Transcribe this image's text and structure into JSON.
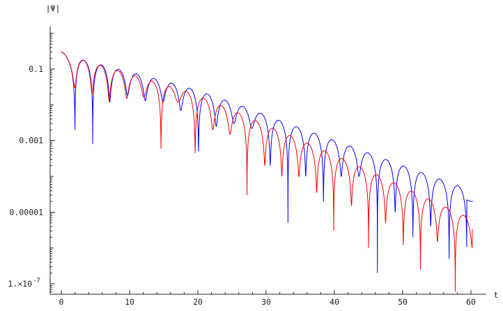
{
  "chart_data": {
    "type": "line",
    "title": "",
    "xlabel": "t",
    "ylabel": "|Ψ|",
    "xlim": [
      0,
      60
    ],
    "ylim": [
      5e-08,
      1.0
    ],
    "y_scale": "log",
    "grid": false,
    "legend": "none",
    "x_ticks": [
      0,
      10,
      20,
      30,
      40,
      50,
      60
    ],
    "x_tick_labels": [
      "0",
      "10",
      "20",
      "30",
      "40",
      "50",
      "60"
    ],
    "y_ticks": [
      1e-07,
      1e-05,
      0.001,
      0.1
    ],
    "y_tick_labels": [
      "1.×10",
      "0.00001",
      "0.001",
      "0.1"
    ],
    "y_tick_exponent": "-7",
    "series": [
      {
        "color": "#0000ff",
        "envelope": [
          [
            0.0,
            0.3
          ],
          [
            3.1,
            0.18
          ],
          [
            20.0,
            0.025
          ],
          [
            40.0,
            0.001
          ],
          [
            60.0,
            4e-05
          ]
        ],
        "minima": [
          [
            2.0,
            0.002
          ],
          [
            4.6,
            0.0008
          ],
          [
            7.1,
            0.012
          ],
          [
            9.7,
            0.018
          ],
          [
            12.3,
            0.013
          ],
          [
            14.9,
            0.012
          ],
          [
            17.5,
            0.007
          ],
          [
            20.1,
            0.0005
          ],
          [
            22.7,
            0.0025
          ],
          [
            25.3,
            0.003
          ],
          [
            27.9,
            0.0022
          ],
          [
            30.6,
            0.0002
          ],
          [
            33.2,
            5e-06
          ],
          [
            35.8,
            0.0001
          ],
          [
            38.4,
            2e-05
          ],
          [
            41.0,
            0.0001
          ],
          [
            43.6,
            0.0001
          ],
          [
            46.3,
            2e-07
          ],
          [
            48.9,
            1e-05
          ],
          [
            51.5,
            2e-06
          ],
          [
            54.1,
            4e-06
          ],
          [
            56.8,
            5e-07
          ],
          [
            59.4,
            6e-08
          ]
        ]
      },
      {
        "color": "#ff0000",
        "envelope": [
          [
            0.0,
            0.3
          ],
          [
            3.1,
            0.18
          ],
          [
            20.0,
            0.018
          ],
          [
            40.0,
            0.0004
          ],
          [
            60.0,
            6.5e-06
          ]
        ],
        "minima": [
          [
            2.0,
            0.03
          ],
          [
            4.5,
            0.02
          ],
          [
            7.0,
            0.013
          ],
          [
            9.6,
            0.015
          ],
          [
            12.1,
            0.016
          ],
          [
            14.6,
            0.0006
          ],
          [
            17.1,
            0.012
          ],
          [
            19.6,
            0.00045
          ],
          [
            22.2,
            0.002
          ],
          [
            24.7,
            0.0015
          ],
          [
            27.2,
            3e-05
          ],
          [
            29.8,
            0.0002
          ],
          [
            32.3,
            0.0001
          ],
          [
            34.8,
            0.0001
          ],
          [
            37.4,
            3.5e-05
          ],
          [
            39.9,
            3e-06
          ],
          [
            42.5,
            1.5e-05
          ],
          [
            45.0,
            1e-06
          ],
          [
            47.5,
            5e-06
          ],
          [
            50.1,
            1.2e-06
          ],
          [
            52.6,
            2.5e-07
          ],
          [
            55.1,
            1.5e-06
          ],
          [
            57.7,
            6e-08
          ],
          [
            60.2,
            1e-06
          ]
        ]
      }
    ]
  }
}
